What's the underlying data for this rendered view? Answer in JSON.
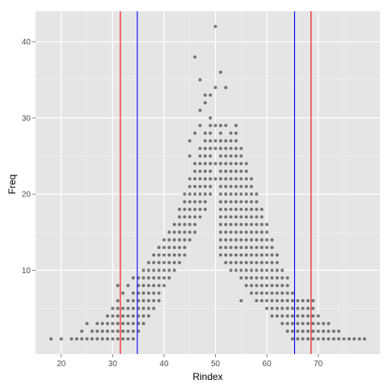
{
  "chart_data": {
    "type": "scatter",
    "xlabel": "Rindex",
    "ylabel": "Freq",
    "xlim": [
      15,
      82
    ],
    "ylim": [
      -1,
      44
    ],
    "x_ticks": [
      20,
      30,
      40,
      50,
      60,
      70
    ],
    "y_ticks": [
      10,
      20,
      30,
      40
    ],
    "grid": true,
    "colors": {
      "panel": "#e5e5e5",
      "grid_major": "#ffffff",
      "grid_minor": "#f2f2f2",
      "points": "#000000",
      "vline_red": "#ff0000",
      "vline_blue": "#0000ff"
    },
    "point_alpha": 0.5,
    "vlines": [
      {
        "x": 31.5,
        "color": "red"
      },
      {
        "x": 34.8,
        "color": "blue"
      },
      {
        "x": 65.4,
        "color": "blue"
      },
      {
        "x": 68.6,
        "color": "red"
      }
    ],
    "points": [
      [
        18,
        1
      ],
      [
        20,
        1
      ],
      [
        22,
        1
      ],
      [
        23,
        1
      ],
      [
        24,
        1
      ],
      [
        25,
        1
      ],
      [
        26,
        1
      ],
      [
        27,
        1
      ],
      [
        28,
        1
      ],
      [
        29,
        1
      ],
      [
        30,
        1
      ],
      [
        31,
        1
      ],
      [
        32,
        1
      ],
      [
        33,
        1
      ],
      [
        34,
        1
      ],
      [
        24,
        2
      ],
      [
        26,
        2
      ],
      [
        27,
        2
      ],
      [
        28,
        2
      ],
      [
        29,
        2
      ],
      [
        30,
        2
      ],
      [
        31,
        2
      ],
      [
        32,
        2
      ],
      [
        33,
        2
      ],
      [
        34,
        2
      ],
      [
        35,
        2
      ],
      [
        25,
        3
      ],
      [
        27,
        3
      ],
      [
        28,
        3
      ],
      [
        29,
        3
      ],
      [
        30,
        3
      ],
      [
        31,
        3
      ],
      [
        32,
        3
      ],
      [
        33,
        3
      ],
      [
        34,
        3
      ],
      [
        35,
        3
      ],
      [
        36,
        3
      ],
      [
        29,
        4
      ],
      [
        30,
        4
      ],
      [
        31,
        4
      ],
      [
        32,
        4
      ],
      [
        33,
        4
      ],
      [
        34,
        4
      ],
      [
        35,
        4
      ],
      [
        36,
        4
      ],
      [
        37,
        4
      ],
      [
        30,
        5
      ],
      [
        31,
        5
      ],
      [
        32,
        5
      ],
      [
        33,
        5
      ],
      [
        34,
        5
      ],
      [
        35,
        5
      ],
      [
        36,
        5
      ],
      [
        37,
        5
      ],
      [
        38,
        5
      ],
      [
        31,
        6
      ],
      [
        33,
        6
      ],
      [
        34,
        6
      ],
      [
        35,
        6
      ],
      [
        36,
        6
      ],
      [
        37,
        6
      ],
      [
        38,
        6
      ],
      [
        39,
        6
      ],
      [
        32,
        7
      ],
      [
        34,
        7
      ],
      [
        35,
        7
      ],
      [
        36,
        7
      ],
      [
        37,
        7
      ],
      [
        38,
        7
      ],
      [
        39,
        7
      ],
      [
        31,
        8
      ],
      [
        33,
        8
      ],
      [
        35,
        8
      ],
      [
        36,
        8
      ],
      [
        37,
        8
      ],
      [
        38,
        8
      ],
      [
        39,
        8
      ],
      [
        40,
        8
      ],
      [
        34,
        9
      ],
      [
        35,
        9
      ],
      [
        36,
        9
      ],
      [
        37,
        9
      ],
      [
        38,
        9
      ],
      [
        39,
        9
      ],
      [
        40,
        9
      ],
      [
        41,
        9
      ],
      [
        36,
        10
      ],
      [
        37,
        10
      ],
      [
        38,
        10
      ],
      [
        39,
        10
      ],
      [
        40,
        10
      ],
      [
        41,
        10
      ],
      [
        42,
        10
      ],
      [
        37,
        11
      ],
      [
        38,
        11
      ],
      [
        39,
        11
      ],
      [
        40,
        11
      ],
      [
        41,
        11
      ],
      [
        42,
        11
      ],
      [
        43,
        11
      ],
      [
        38,
        12
      ],
      [
        39,
        12
      ],
      [
        40,
        12
      ],
      [
        41,
        12
      ],
      [
        42,
        12
      ],
      [
        43,
        12
      ],
      [
        44,
        12
      ],
      [
        39,
        13
      ],
      [
        40,
        13
      ],
      [
        41,
        13
      ],
      [
        42,
        13
      ],
      [
        43,
        13
      ],
      [
        44,
        13
      ],
      [
        40,
        14
      ],
      [
        41,
        14
      ],
      [
        42,
        14
      ],
      [
        43,
        14
      ],
      [
        44,
        14
      ],
      [
        45,
        14
      ],
      [
        41,
        15
      ],
      [
        42,
        15
      ],
      [
        43,
        15
      ],
      [
        44,
        15
      ],
      [
        45,
        15
      ],
      [
        46,
        15
      ],
      [
        42,
        16
      ],
      [
        43,
        16
      ],
      [
        44,
        16
      ],
      [
        45,
        16
      ],
      [
        46,
        16
      ],
      [
        43,
        17
      ],
      [
        44,
        17
      ],
      [
        45,
        17
      ],
      [
        46,
        17
      ],
      [
        47,
        17
      ],
      [
        43,
        18
      ],
      [
        44,
        18
      ],
      [
        45,
        18
      ],
      [
        46,
        18
      ],
      [
        47,
        18
      ],
      [
        48,
        18
      ],
      [
        44,
        19
      ],
      [
        45,
        19
      ],
      [
        46,
        19
      ],
      [
        47,
        19
      ],
      [
        48,
        19
      ],
      [
        44,
        20
      ],
      [
        45,
        20
      ],
      [
        46,
        20
      ],
      [
        47,
        20
      ],
      [
        48,
        20
      ],
      [
        49,
        20
      ],
      [
        45,
        21
      ],
      [
        46,
        21
      ],
      [
        47,
        21
      ],
      [
        48,
        21
      ],
      [
        49,
        21
      ],
      [
        45,
        22
      ],
      [
        46,
        22
      ],
      [
        47,
        22
      ],
      [
        48,
        22
      ],
      [
        49,
        22
      ],
      [
        50,
        22
      ],
      [
        46,
        23
      ],
      [
        47,
        23
      ],
      [
        48,
        23
      ],
      [
        49,
        23
      ],
      [
        46,
        24
      ],
      [
        47,
        24
      ],
      [
        48,
        24
      ],
      [
        49,
        24
      ],
      [
        50,
        24
      ],
      [
        45,
        25
      ],
      [
        47,
        25
      ],
      [
        48,
        25
      ],
      [
        49,
        25
      ],
      [
        47,
        26
      ],
      [
        48,
        26
      ],
      [
        49,
        26
      ],
      [
        50,
        26
      ],
      [
        45,
        27
      ],
      [
        48,
        27
      ],
      [
        49,
        27
      ],
      [
        50,
        27
      ],
      [
        46,
        28
      ],
      [
        48,
        28
      ],
      [
        49,
        28
      ],
      [
        47,
        29
      ],
      [
        49,
        29
      ],
      [
        50,
        29
      ],
      [
        47,
        31
      ],
      [
        49,
        30
      ],
      [
        48,
        33
      ],
      [
        49,
        33
      ],
      [
        48,
        32
      ],
      [
        47,
        35
      ],
      [
        46,
        38
      ],
      [
        50,
        42
      ],
      [
        51,
        36
      ],
      [
        50,
        34
      ],
      [
        52,
        34
      ],
      [
        51,
        29
      ],
      [
        52,
        29
      ],
      [
        54,
        29
      ],
      [
        51,
        28
      ],
      [
        53,
        28
      ],
      [
        54,
        28
      ],
      [
        51,
        27
      ],
      [
        52,
        27
      ],
      [
        53,
        27
      ],
      [
        54,
        27
      ],
      [
        51,
        26
      ],
      [
        52,
        26
      ],
      [
        53,
        26
      ],
      [
        54,
        26
      ],
      [
        55,
        26
      ],
      [
        51,
        25
      ],
      [
        52,
        25
      ],
      [
        53,
        25
      ],
      [
        54,
        25
      ],
      [
        55,
        25
      ],
      [
        51,
        24
      ],
      [
        52,
        24
      ],
      [
        53,
        24
      ],
      [
        54,
        24
      ],
      [
        55,
        24
      ],
      [
        56,
        24
      ],
      [
        51,
        23
      ],
      [
        52,
        23
      ],
      [
        53,
        23
      ],
      [
        54,
        23
      ],
      [
        55,
        23
      ],
      [
        56,
        23
      ],
      [
        51,
        22
      ],
      [
        52,
        22
      ],
      [
        53,
        22
      ],
      [
        54,
        22
      ],
      [
        55,
        22
      ],
      [
        56,
        22
      ],
      [
        57,
        22
      ],
      [
        51,
        21
      ],
      [
        52,
        21
      ],
      [
        53,
        21
      ],
      [
        54,
        21
      ],
      [
        55,
        21
      ],
      [
        56,
        21
      ],
      [
        57,
        21
      ],
      [
        51,
        20
      ],
      [
        52,
        20
      ],
      [
        53,
        20
      ],
      [
        54,
        20
      ],
      [
        55,
        20
      ],
      [
        56,
        20
      ],
      [
        57,
        20
      ],
      [
        58,
        20
      ],
      [
        51,
        19
      ],
      [
        52,
        19
      ],
      [
        53,
        19
      ],
      [
        54,
        19
      ],
      [
        55,
        19
      ],
      [
        56,
        19
      ],
      [
        57,
        19
      ],
      [
        58,
        19
      ],
      [
        51,
        18
      ],
      [
        52,
        18
      ],
      [
        53,
        18
      ],
      [
        54,
        18
      ],
      [
        55,
        18
      ],
      [
        56,
        18
      ],
      [
        57,
        18
      ],
      [
        58,
        18
      ],
      [
        59,
        18
      ],
      [
        51,
        17
      ],
      [
        52,
        17
      ],
      [
        53,
        17
      ],
      [
        54,
        17
      ],
      [
        55,
        17
      ],
      [
        56,
        17
      ],
      [
        57,
        17
      ],
      [
        58,
        17
      ],
      [
        59,
        17
      ],
      [
        51,
        16
      ],
      [
        52,
        16
      ],
      [
        53,
        16
      ],
      [
        54,
        16
      ],
      [
        55,
        16
      ],
      [
        56,
        16
      ],
      [
        57,
        16
      ],
      [
        58,
        16
      ],
      [
        59,
        16
      ],
      [
        60,
        16
      ],
      [
        51,
        15
      ],
      [
        52,
        15
      ],
      [
        53,
        15
      ],
      [
        54,
        15
      ],
      [
        55,
        15
      ],
      [
        56,
        15
      ],
      [
        57,
        15
      ],
      [
        58,
        15
      ],
      [
        59,
        15
      ],
      [
        60,
        15
      ],
      [
        51,
        14
      ],
      [
        52,
        14
      ],
      [
        53,
        14
      ],
      [
        54,
        14
      ],
      [
        55,
        14
      ],
      [
        56,
        14
      ],
      [
        57,
        14
      ],
      [
        58,
        14
      ],
      [
        59,
        14
      ],
      [
        60,
        14
      ],
      [
        61,
        14
      ],
      [
        51,
        13
      ],
      [
        52,
        13
      ],
      [
        53,
        13
      ],
      [
        54,
        13
      ],
      [
        55,
        13
      ],
      [
        56,
        13
      ],
      [
        57,
        13
      ],
      [
        58,
        13
      ],
      [
        59,
        13
      ],
      [
        60,
        13
      ],
      [
        61,
        13
      ],
      [
        51,
        12
      ],
      [
        52,
        12
      ],
      [
        53,
        12
      ],
      [
        54,
        12
      ],
      [
        55,
        12
      ],
      [
        56,
        12
      ],
      [
        57,
        12
      ],
      [
        58,
        12
      ],
      [
        59,
        12
      ],
      [
        60,
        12
      ],
      [
        61,
        12
      ],
      [
        62,
        12
      ],
      [
        52,
        11
      ],
      [
        53,
        11
      ],
      [
        54,
        11
      ],
      [
        55,
        11
      ],
      [
        56,
        11
      ],
      [
        57,
        11
      ],
      [
        58,
        11
      ],
      [
        59,
        11
      ],
      [
        60,
        11
      ],
      [
        61,
        11
      ],
      [
        62,
        11
      ],
      [
        53,
        10
      ],
      [
        54,
        10
      ],
      [
        55,
        10
      ],
      [
        56,
        10
      ],
      [
        57,
        10
      ],
      [
        58,
        10
      ],
      [
        59,
        10
      ],
      [
        60,
        10
      ],
      [
        61,
        10
      ],
      [
        62,
        10
      ],
      [
        63,
        10
      ],
      [
        55,
        9
      ],
      [
        56,
        9
      ],
      [
        57,
        9
      ],
      [
        58,
        9
      ],
      [
        59,
        9
      ],
      [
        60,
        9
      ],
      [
        61,
        9
      ],
      [
        62,
        9
      ],
      [
        63,
        9
      ],
      [
        64,
        9
      ],
      [
        56,
        8
      ],
      [
        57,
        8
      ],
      [
        58,
        8
      ],
      [
        59,
        8
      ],
      [
        60,
        8
      ],
      [
        61,
        8
      ],
      [
        62,
        8
      ],
      [
        63,
        8
      ],
      [
        64,
        8
      ],
      [
        57,
        7
      ],
      [
        58,
        7
      ],
      [
        59,
        7
      ],
      [
        60,
        7
      ],
      [
        61,
        7
      ],
      [
        62,
        7
      ],
      [
        63,
        7
      ],
      [
        64,
        7
      ],
      [
        65,
        7
      ],
      [
        55,
        6
      ],
      [
        58,
        6
      ],
      [
        59,
        6
      ],
      [
        60,
        6
      ],
      [
        61,
        6
      ],
      [
        62,
        6
      ],
      [
        63,
        6
      ],
      [
        64,
        6
      ],
      [
        65,
        6
      ],
      [
        66,
        6
      ],
      [
        67,
        6
      ],
      [
        68,
        6
      ],
      [
        69,
        6
      ],
      [
        60,
        5
      ],
      [
        61,
        5
      ],
      [
        62,
        5
      ],
      [
        63,
        5
      ],
      [
        64,
        5
      ],
      [
        65,
        5
      ],
      [
        66,
        5
      ],
      [
        67,
        5
      ],
      [
        68,
        5
      ],
      [
        69,
        5
      ],
      [
        61,
        4
      ],
      [
        62,
        4
      ],
      [
        63,
        4
      ],
      [
        64,
        4
      ],
      [
        65,
        4
      ],
      [
        66,
        4
      ],
      [
        67,
        4
      ],
      [
        68,
        4
      ],
      [
        69,
        4
      ],
      [
        70,
        4
      ],
      [
        63,
        3
      ],
      [
        64,
        3
      ],
      [
        65,
        3
      ],
      [
        66,
        3
      ],
      [
        67,
        3
      ],
      [
        68,
        3
      ],
      [
        69,
        3
      ],
      [
        70,
        3
      ],
      [
        71,
        3
      ],
      [
        72,
        3
      ],
      [
        64,
        2
      ],
      [
        65,
        2
      ],
      [
        66,
        2
      ],
      [
        67,
        2
      ],
      [
        68,
        2
      ],
      [
        69,
        2
      ],
      [
        70,
        2
      ],
      [
        71,
        2
      ],
      [
        72,
        2
      ],
      [
        73,
        2
      ],
      [
        74,
        2
      ],
      [
        65,
        1
      ],
      [
        66,
        1
      ],
      [
        67,
        1
      ],
      [
        68,
        1
      ],
      [
        69,
        1
      ],
      [
        70,
        1
      ],
      [
        71,
        1
      ],
      [
        72,
        1
      ],
      [
        73,
        1
      ],
      [
        74,
        1
      ],
      [
        75,
        1
      ],
      [
        76,
        1
      ],
      [
        77,
        1
      ],
      [
        78,
        1
      ],
      [
        79,
        1
      ]
    ]
  }
}
